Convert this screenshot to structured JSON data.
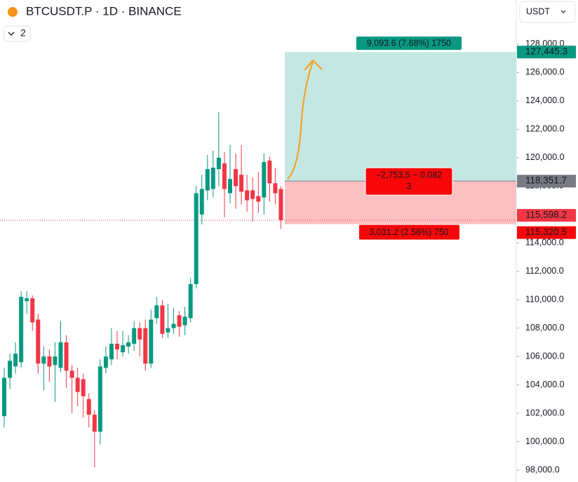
{
  "chart_data": {
    "type": "candlestick",
    "title": "BTCUSDT.P · 1D · BINANCE",
    "indicator_count": "2",
    "currency": "USDT",
    "up_color": "#089981",
    "down_color": "#f23645",
    "ylim": [
      97160,
      131110
    ],
    "yticks": [
      {
        "value": 98000,
        "label": "98,000.0"
      },
      {
        "value": 100000,
        "label": "100,000.0"
      },
      {
        "value": 102000,
        "label": "102,000.0"
      },
      {
        "value": 104000,
        "label": "104,000.0"
      },
      {
        "value": 106000,
        "label": "106,000.0"
      },
      {
        "value": 108000,
        "label": "108,000.0"
      },
      {
        "value": 110000,
        "label": "110,000.0"
      },
      {
        "value": 112000,
        "label": "112,000.0"
      },
      {
        "value": 114000,
        "label": "114,000.0"
      },
      {
        "value": 116000,
        "label": "116,000.0"
      },
      {
        "value": 118000,
        "label": "118,000.0"
      },
      {
        "value": 120000,
        "label": "120,000.0"
      },
      {
        "value": 122000,
        "label": "122,000.0"
      },
      {
        "value": 124000,
        "label": "124,000.0"
      },
      {
        "value": 126000,
        "label": "126,000.0"
      },
      {
        "value": 128000,
        "label": "128,000.0"
      }
    ],
    "open": [
      101800,
      104500,
      105300,
      105600,
      109900,
      110100,
      108600,
      105500,
      106000,
      105400,
      105200,
      107000,
      105000,
      104500,
      104400,
      103000,
      101900,
      100700,
      105200,
      105800,
      106900,
      106300,
      106700,
      106900,
      108000,
      108000,
      105500,
      108700,
      109600,
      107700,
      108000,
      108900,
      108200,
      108700,
      111100,
      116000,
      117700,
      117800,
      119200,
      119600,
      117500,
      119200,
      118800,
      117700,
      117700,
      117300,
      117200,
      119800,
      118200,
      117800
    ],
    "high": [
      105200,
      106200,
      107000,
      110600,
      110600,
      110300,
      109000,
      106700,
      106500,
      107000,
      108500,
      107500,
      105400,
      105200,
      104800,
      103400,
      102200,
      105800,
      106700,
      108000,
      107800,
      107800,
      107500,
      108500,
      108400,
      108600,
      109300,
      110200,
      110000,
      109700,
      109400,
      109200,
      109500,
      111500,
      118000,
      118800,
      120200,
      120500,
      123200,
      120400,
      120900,
      120300,
      120900,
      118800,
      118600,
      119000,
      120300,
      120100,
      119300,
      118000
    ],
    "low": [
      101000,
      103700,
      104800,
      105200,
      109000,
      107800,
      104800,
      103600,
      104200,
      102800,
      104900,
      103800,
      102000,
      102500,
      101700,
      101000,
      98200,
      99800,
      104800,
      105400,
      105800,
      106000,
      106200,
      106400,
      106000,
      105000,
      105200,
      108300,
      107300,
      107300,
      107600,
      107400,
      107500,
      108400,
      110800,
      115300,
      117000,
      117200,
      118000,
      115800,
      116800,
      116400,
      116700,
      116200,
      115500,
      116100,
      116000,
      116900,
      116700,
      115000
    ],
    "close": [
      104500,
      105700,
      106200,
      110200,
      110100,
      108400,
      105500,
      106000,
      105300,
      106000,
      107000,
      105000,
      104500,
      103500,
      103200,
      101900,
      100700,
      105300,
      106000,
      106900,
      106500,
      106800,
      107000,
      108000,
      107200,
      105500,
      108600,
      109600,
      107600,
      108000,
      108300,
      108100,
      108800,
      111100,
      117500,
      117800,
      119200,
      119300,
      120000,
      117800,
      118500,
      118000,
      117600,
      117000,
      117100,
      116900,
      119700,
      118200,
      117500,
      115598.2
    ],
    "position": {
      "target": {
        "value": 127445.3,
        "label": "127,445.3"
      },
      "entry": {
        "value": 118351.7,
        "label": "118,351.7"
      },
      "last": {
        "value": 115598.2,
        "label": "115,598.2"
      },
      "stop": {
        "value": 115320.5,
        "label": "115,320.5"
      },
      "target_text": "9,093.6 (7.68%) 1750",
      "summary_line1": "−2,753.5 ~ 0.082",
      "summary_line2": "3",
      "stop_text": "3,031.2 (2.56%) 750"
    }
  }
}
